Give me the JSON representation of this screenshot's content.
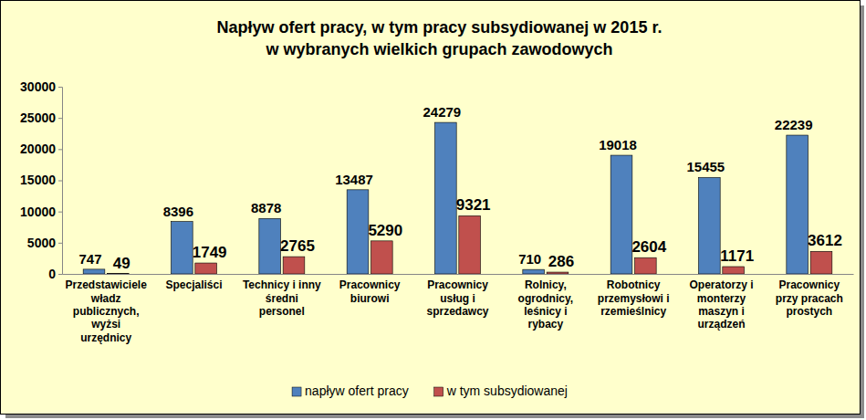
{
  "chart_data": {
    "type": "bar",
    "title": "Napływ ofert pracy, w tym pracy subsydiowanej w 2015 r.\nw wybranych wielkich grupach zawodowych",
    "categories": [
      "Przedstawiciele władz publicznych, wyżsi urzędnicy",
      "Specjaliści",
      "Technicy i inny średni personel",
      "Pracownicy biurowi",
      "Pracownicy usług i sprzedawcy",
      "Rolnicy, ogrodnicy, leśnicy i rybacy",
      "Robotnicy przemysłowi i rzemieślnicy",
      "Operatorzy i monterzy maszyn i urządzeń",
      "Pracownicy przy pracach prostych"
    ],
    "series": [
      {
        "name": "napływ ofert pracy",
        "color": "#4f81bd",
        "values": [
          747,
          8396,
          8878,
          13487,
          24279,
          710,
          19018,
          15455,
          22239
        ]
      },
      {
        "name": "w tym subsydiowanej",
        "color": "#c0504d",
        "values": [
          49,
          1749,
          2765,
          5290,
          9321,
          286,
          2604,
          1171,
          3612
        ]
      }
    ],
    "ylim": [
      0,
      30000
    ],
    "yticks": [
      0,
      5000,
      10000,
      15000,
      20000,
      25000,
      30000
    ],
    "grid": false,
    "legend": "bottom",
    "data_labels": true
  }
}
